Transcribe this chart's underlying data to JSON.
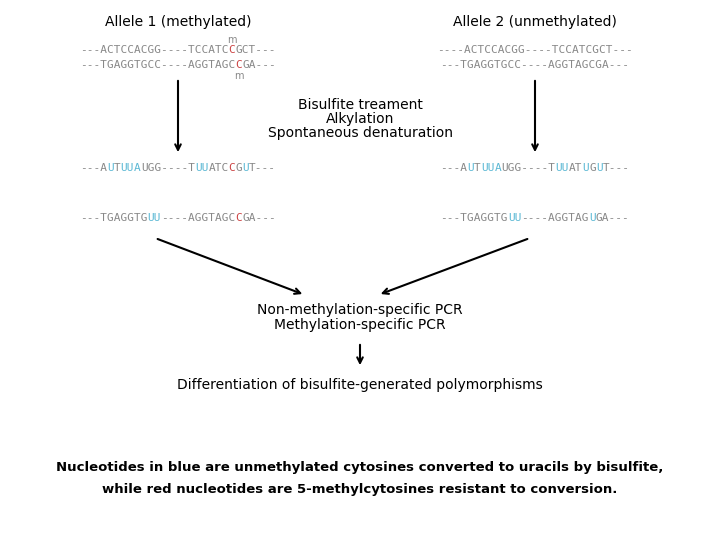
{
  "bg_color": "#ffffff",
  "title1": "Allele 1 (methylated)",
  "title2": "Allele 2 (unmethylated)",
  "gray": "#888888",
  "blue": "#5bb8d4",
  "red": "#cc4444",
  "caption1": "Nucleotides in blue are unmethylated cytosines converted to uracils by bisulfite,",
  "caption2": "while red nucleotides are 5-methylcytosines resistant to conversion.",
  "bisulfite_lines": [
    "Bisulfite treament",
    "Alkylation",
    "Spontaneous denaturation"
  ],
  "pcr_lines": [
    "Non-methylation-specific PCR",
    "Methylation-specific PCR"
  ],
  "diff_text": "Differentiation of bisulfite-generated polymorphisms",
  "seq_fontsize": 8.0,
  "seq1_top1": [
    {
      "t": "---ACTCCACGG----TCCATC",
      "c": "gray"
    },
    {
      "t": "C",
      "c": "red"
    },
    {
      "t": "GCT---",
      "c": "gray"
    }
  ],
  "seq1_top2": [
    {
      "t": "---TGAGGTGCC----AGGTAGC",
      "c": "gray"
    },
    {
      "t": "C",
      "c": "red"
    },
    {
      "t": "GA---",
      "c": "gray"
    }
  ],
  "seq2_top1": [
    {
      "t": "----ACTCCACGG----TCCATCGCT---",
      "c": "gray"
    }
  ],
  "seq2_top2": [
    {
      "t": "---TGAGGTGCC----AGGTAGCGA---",
      "c": "gray"
    }
  ],
  "seq1_mid1": [
    {
      "t": "---A",
      "c": "gray"
    },
    {
      "t": "U",
      "c": "blue"
    },
    {
      "t": "T",
      "c": "gray"
    },
    {
      "t": "UU",
      "c": "blue"
    },
    {
      "t": "A",
      "c": "blue"
    },
    {
      "t": "UGG----T",
      "c": "gray"
    },
    {
      "t": "UU",
      "c": "blue"
    },
    {
      "t": "ATC",
      "c": "gray"
    },
    {
      "t": "C",
      "c": "red"
    },
    {
      "t": "G",
      "c": "gray"
    },
    {
      "t": "U",
      "c": "blue"
    },
    {
      "t": "T---",
      "c": "gray"
    }
  ],
  "seq2_mid1": [
    {
      "t": "---A",
      "c": "gray"
    },
    {
      "t": "U",
      "c": "blue"
    },
    {
      "t": "T",
      "c": "gray"
    },
    {
      "t": "UU",
      "c": "blue"
    },
    {
      "t": "A",
      "c": "blue"
    },
    {
      "t": "UGG----T",
      "c": "gray"
    },
    {
      "t": "UU",
      "c": "blue"
    },
    {
      "t": "AT",
      "c": "gray"
    },
    {
      "t": "U",
      "c": "blue"
    },
    {
      "t": "G",
      "c": "gray"
    },
    {
      "t": "U",
      "c": "blue"
    },
    {
      "t": "T---",
      "c": "gray"
    }
  ],
  "seq1_bot1": [
    {
      "t": "---TGAGGTG",
      "c": "gray"
    },
    {
      "t": "UU",
      "c": "blue"
    },
    {
      "t": "----AGGTAGC",
      "c": "gray"
    },
    {
      "t": "C",
      "c": "red"
    },
    {
      "t": "GA---",
      "c": "gray"
    }
  ],
  "seq2_bot1": [
    {
      "t": "---TGAGGTG",
      "c": "gray"
    },
    {
      "t": "UU",
      "c": "blue"
    },
    {
      "t": "----AGGTAG",
      "c": "gray"
    },
    {
      "t": "U",
      "c": "blue"
    },
    {
      "t": "GA---",
      "c": "gray"
    }
  ]
}
